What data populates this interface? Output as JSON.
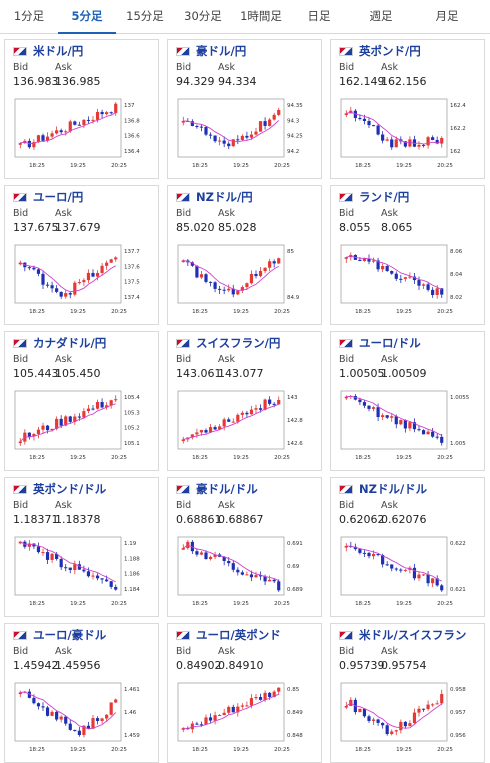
{
  "tabs": [
    {
      "label": "1分足",
      "active": false
    },
    {
      "label": "5分足",
      "active": true
    },
    {
      "label": "15分足",
      "active": false
    },
    {
      "label": "30分足",
      "active": false
    },
    {
      "label": "1時間足",
      "active": false
    },
    {
      "label": "日足",
      "active": false
    },
    {
      "label": "週足",
      "active": false
    },
    {
      "label": "月足",
      "active": false
    }
  ],
  "labels": {
    "bid": "Bid",
    "ask": "Ask"
  },
  "x_ticks": [
    "18:25",
    "19:25",
    "20:25"
  ],
  "colors": {
    "up": "#e53935",
    "down": "#1e2fb3",
    "ma": "#d040d0",
    "accent": "#1d62b7",
    "link": "#1d3f9e"
  },
  "cards": [
    {
      "pair": "米ドル/円",
      "flag": "us-jp-flag",
      "bid": "136.983",
      "ask": "136.985",
      "ticks": [
        "137",
        "136.8",
        "136.6",
        "136.4"
      ],
      "chart_data": {
        "type": "candlestick",
        "y_min": 136.35,
        "y_max": 137.02,
        "trend": "up"
      }
    },
    {
      "pair": "豪ドル/円",
      "flag": "au-jp-flag",
      "bid": "94.329",
      "ask": "94.334",
      "ticks": [
        "94.35",
        "94.3",
        "94.25",
        "94.2"
      ],
      "chart_data": {
        "type": "candlestick",
        "y_min": 94.17,
        "y_max": 94.37,
        "trend": "dip-up"
      }
    },
    {
      "pair": "英ポンド/円",
      "flag": "gb-jp-flag",
      "bid": "162.149",
      "ask": "162.156",
      "ticks": [
        "162.4",
        "162.2",
        "162"
      ],
      "chart_data": {
        "type": "candlestick",
        "y_min": 161.95,
        "y_max": 162.45,
        "trend": "down-flat"
      }
    },
    {
      "pair": "ユーロ/円",
      "flag": "eu-jp-flag",
      "bid": "137.675",
      "ask": "137.679",
      "ticks": [
        "137.7",
        "137.6",
        "137.5",
        "137.4"
      ],
      "chart_data": {
        "type": "candlestick",
        "y_min": 137.37,
        "y_max": 137.73,
        "trend": "dip-up"
      }
    },
    {
      "pair": "NZドル/円",
      "flag": "nz-jp-flag",
      "bid": "85.020",
      "ask": "85.028",
      "ticks": [
        "85",
        "84.9"
      ],
      "chart_data": {
        "type": "candlestick",
        "y_min": 84.86,
        "y_max": 85.06,
        "trend": "dip-up"
      }
    },
    {
      "pair": "ランド/円",
      "flag": "za-jp-flag",
      "bid": "8.055",
      "ask": "8.065",
      "ticks": [
        "8.06",
        "8.04",
        "8.02"
      ],
      "chart_data": {
        "type": "candlestick",
        "y_min": 8.01,
        "y_max": 8.07,
        "trend": "down"
      }
    },
    {
      "pair": "カナダドル/円",
      "flag": "ca-jp-flag",
      "bid": "105.443",
      "ask": "105.450",
      "ticks": [
        "105.4",
        "105.3",
        "105.2",
        "105.1"
      ],
      "chart_data": {
        "type": "candlestick",
        "y_min": 105.08,
        "y_max": 105.48,
        "trend": "up"
      }
    },
    {
      "pair": "スイスフラン/円",
      "flag": "ch-jp-flag",
      "bid": "143.061",
      "ask": "143.077",
      "ticks": [
        "143",
        "142.8",
        "142.6"
      ],
      "chart_data": {
        "type": "candlestick",
        "y_min": 142.5,
        "y_max": 143.12,
        "trend": "up"
      }
    },
    {
      "pair": "ユーロ/ドル",
      "flag": "eu-us-flag",
      "bid": "1.00505",
      "ask": "1.00509",
      "ticks": [
        "1.0055",
        "1.005"
      ],
      "chart_data": {
        "type": "candlestick",
        "y_min": 1.0044,
        "y_max": 1.0062,
        "trend": "down"
      }
    },
    {
      "pair": "英ポンド/ドル",
      "flag": "gb-us-flag",
      "bid": "1.18371",
      "ask": "1.18378",
      "ticks": [
        "1.19",
        "1.188",
        "1.186",
        "1.184"
      ],
      "chart_data": {
        "type": "candlestick",
        "y_min": 1.1832,
        "y_max": 1.1905,
        "trend": "down"
      }
    },
    {
      "pair": "豪ドル/ドル",
      "flag": "au-us-flag",
      "bid": "0.68861",
      "ask": "0.68867",
      "ticks": [
        "0.691",
        "0.69",
        "0.689"
      ],
      "chart_data": {
        "type": "candlestick",
        "y_min": 0.6884,
        "y_max": 0.6915,
        "trend": "down"
      }
    },
    {
      "pair": "NZドル/ドル",
      "flag": "nz-us-flag",
      "bid": "0.62062",
      "ask": "0.62076",
      "ticks": [
        "0.622",
        "0.621"
      ],
      "chart_data": {
        "type": "candlestick",
        "y_min": 0.6204,
        "y_max": 0.6225,
        "trend": "down"
      }
    },
    {
      "pair": "ユーロ/豪ドル",
      "flag": "eu-au-flag",
      "bid": "1.45942",
      "ask": "1.45956",
      "ticks": [
        "1.461",
        "1.46",
        "1.459"
      ],
      "chart_data": {
        "type": "candlestick",
        "y_min": 1.4585,
        "y_max": 1.4613,
        "trend": "down-up"
      }
    },
    {
      "pair": "ユーロ/英ポンド",
      "flag": "eu-gb-flag",
      "bid": "0.84902",
      "ask": "0.84910",
      "ticks": [
        "0.85",
        "0.849",
        "0.848"
      ],
      "chart_data": {
        "type": "candlestick",
        "y_min": 0.8474,
        "y_max": 0.8503,
        "trend": "up"
      }
    },
    {
      "pair": "米ドル/スイスフラン",
      "flag": "us-ch-flag",
      "bid": "0.95739",
      "ask": "0.95754",
      "ticks": [
        "0.958",
        "0.957",
        "0.956"
      ],
      "chart_data": {
        "type": "candlestick",
        "y_min": 0.9553,
        "y_max": 0.9583,
        "trend": "dip-up"
      }
    }
  ]
}
